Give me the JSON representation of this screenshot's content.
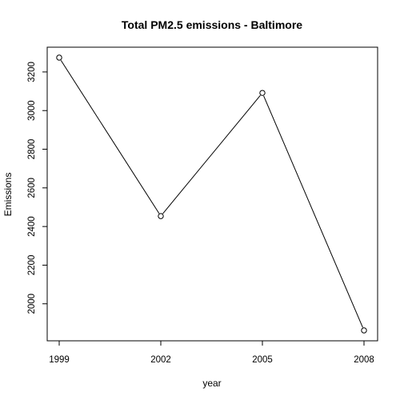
{
  "chart_data": {
    "type": "line",
    "title": "Total PM2.5 emissions - Baltimore",
    "xlabel": "year",
    "ylabel": "Emissions",
    "x": [
      1999,
      2002,
      2005,
      2008
    ],
    "series": [
      {
        "values": [
          3274.2,
          2453.9,
          3091.4,
          1862.3
        ]
      }
    ],
    "xticks": [
      "1999",
      "2002",
      "2005",
      "2008"
    ],
    "yticks": [
      "2000",
      "2200",
      "2400",
      "2600",
      "2800",
      "3000",
      "3200"
    ],
    "xlim": [
      1999,
      2008
    ],
    "ylim": [
      1862.3,
      3274.2
    ],
    "grid": false,
    "markers": "open-circle",
    "colors": {
      "line": "#000000",
      "frame": "#000000"
    }
  }
}
